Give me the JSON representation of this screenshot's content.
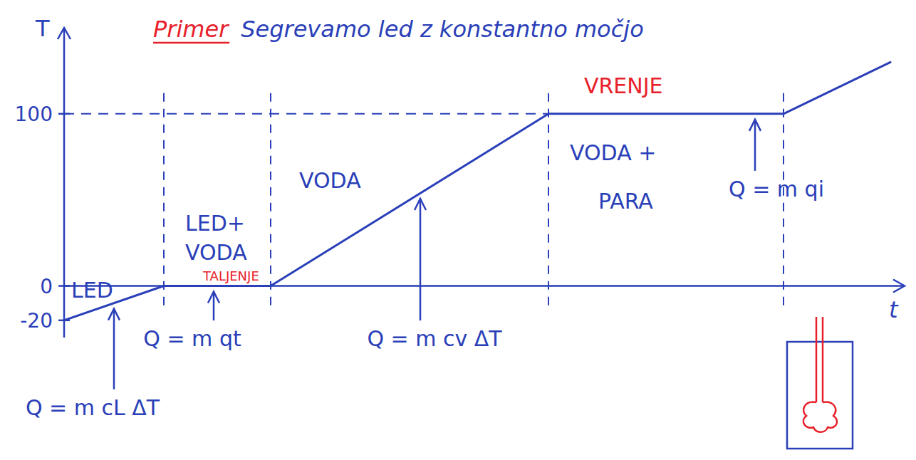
{
  "chart_data": {
    "type": "line",
    "title_prefix": "Primer",
    "title": "Segrevamo led z konstantno močjo",
    "x_label": "t",
    "y_label": "T",
    "x": [
      0,
      14,
      29,
      68,
      101,
      116
    ],
    "series": [
      {
        "color": "#2a3fb8",
        "values": [
          -20,
          0,
          0,
          100,
          100,
          130
        ]
      }
    ],
    "xlim": [
      0,
      118
    ],
    "ylim": [
      -30,
      150
    ],
    "xticks": [
      14,
      29,
      68,
      101
    ],
    "yticks": [
      -20,
      0,
      100
    ],
    "grid": true,
    "tick_labels": "y",
    "labels": [
      {
        "text": "LED",
        "x": 1,
        "y": -7,
        "color": "#2a3fb8"
      },
      {
        "text": "LED+",
        "x": 17,
        "y": 32,
        "color": "#2a3fb8"
      },
      {
        "text": "VODA",
        "x": 17,
        "y": 15,
        "color": "#2a3fb8"
      },
      {
        "text": "TALJENJE",
        "x": 19.5,
        "y": 3,
        "color": "#e8202a"
      },
      {
        "text": "VODA",
        "x": 33,
        "y": 57,
        "color": "#2a3fb8"
      },
      {
        "text": "VRENJE",
        "x": 73,
        "y": 112,
        "color": "#e8202a"
      },
      {
        "text": "VODA +",
        "x": 71,
        "y": 73,
        "color": "#2a3fb8"
      },
      {
        "text": "PARA",
        "x": 75,
        "y": 45,
        "color": "#2a3fb8"
      }
    ],
    "annotations": [
      {
        "text": "Q = m cL ΔT",
        "x": 7,
        "y": -10,
        "tx": 4,
        "ty": -75
      },
      {
        "text": "Q = m qt",
        "x": 21,
        "y": 0,
        "tx": 18,
        "ty": -35
      },
      {
        "text": "Q = m cv ΔT",
        "x": 50,
        "y": 54,
        "tx": 52,
        "ty": -35
      },
      {
        "text": "Q = m qi",
        "x": 97,
        "y": 100,
        "tx": 100,
        "ty": 52
      }
    ]
  }
}
